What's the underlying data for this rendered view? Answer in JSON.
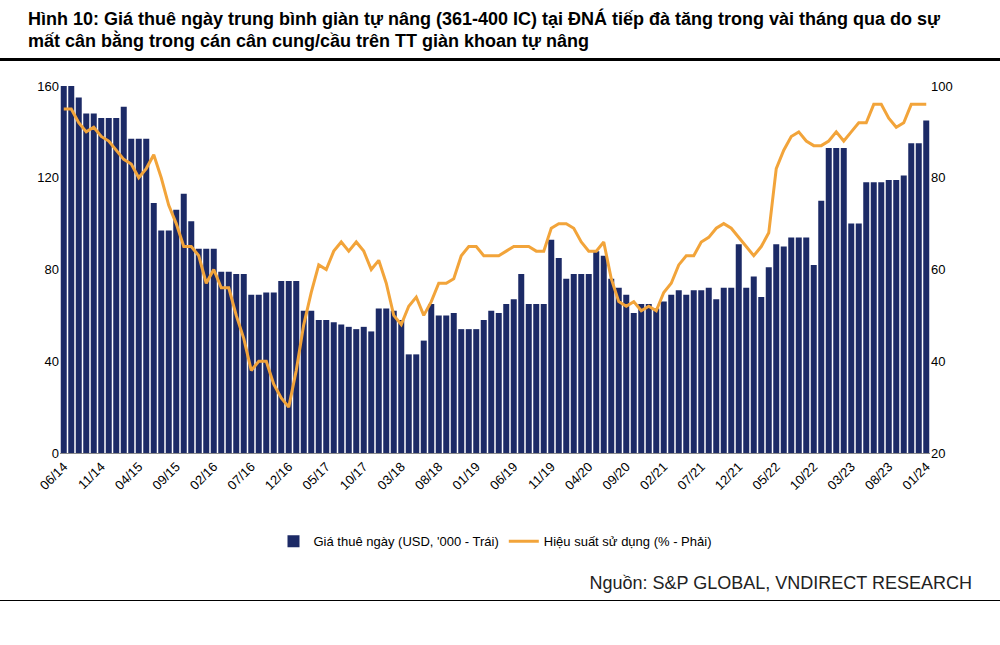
{
  "chart_data": {
    "type": "bar",
    "title": "Hình 10: Giá thuê ngày trung bình giàn tự nâng (361-400 IC) tại ĐNÁ tiếp đà tăng trong vài tháng qua do sự mất cân bằng trong cán cân cung/cầu trên TT giàn khoan tự nâng",
    "source": "Nguồn: S&P GLOBAL, VNDIRECT RESEARCH",
    "categories": [
      "06/14",
      null,
      null,
      null,
      null,
      "11/14",
      null,
      null,
      null,
      null,
      "04/15",
      null,
      null,
      null,
      null,
      "09/15",
      null,
      null,
      null,
      null,
      "02/16",
      null,
      null,
      null,
      null,
      "07/16",
      null,
      null,
      null,
      null,
      "12/16",
      null,
      null,
      null,
      null,
      "05/17",
      null,
      null,
      null,
      null,
      "10/17",
      null,
      null,
      null,
      null,
      "03/18",
      null,
      null,
      null,
      null,
      "08/18",
      null,
      null,
      null,
      null,
      "01/19",
      null,
      null,
      null,
      null,
      "06/19",
      null,
      null,
      null,
      null,
      "11/19",
      null,
      null,
      null,
      null,
      "04/20",
      null,
      null,
      null,
      null,
      "09/20",
      null,
      null,
      null,
      null,
      "02/21",
      null,
      null,
      null,
      null,
      "07/21",
      null,
      null,
      null,
      null,
      "12/21",
      null,
      null,
      null,
      null,
      "05/22",
      null,
      null,
      null,
      null,
      "10/22",
      null,
      null,
      null,
      null,
      "03/23",
      null,
      null,
      null,
      null,
      "08/23",
      null,
      null,
      null,
      null,
      "01/24"
    ],
    "series": [
      {
        "name": "Giá thuê ngày (USD, '000 - Trái)",
        "type": "bar",
        "color": "#1c2a66",
        "values": [
          160,
          160,
          155,
          148,
          148,
          146,
          146,
          146,
          151,
          137,
          137,
          137,
          109,
          97,
          97,
          106,
          113,
          101,
          89,
          89,
          89,
          79,
          79,
          78,
          78,
          69,
          69,
          70,
          70,
          75,
          75,
          75,
          62,
          62,
          58,
          58,
          57,
          56,
          55,
          54,
          55,
          53,
          63,
          63,
          62,
          58,
          43,
          43,
          49,
          65,
          60,
          60,
          61,
          54,
          54,
          54,
          58,
          62,
          61,
          65,
          67,
          78,
          65,
          65,
          65,
          93,
          85,
          76,
          78,
          78,
          78,
          88,
          86,
          76,
          72,
          69,
          61,
          65,
          65,
          63,
          66,
          69,
          71,
          69,
          71,
          71,
          72,
          67,
          72,
          72,
          91,
          72,
          77,
          68,
          81,
          91,
          90,
          94,
          94,
          94,
          82,
          110,
          133,
          133,
          133,
          100,
          100,
          118,
          118,
          118,
          119,
          119,
          121,
          135,
          135,
          145
        ]
      },
      {
        "name": "Hiệu suất sử dụng (% - Phải)",
        "type": "line",
        "color": "#f2a43a",
        "axis": "y2",
        "values": [
          95,
          95,
          92,
          90,
          91,
          89,
          88,
          86,
          84,
          83,
          80,
          82,
          85,
          80,
          74,
          70,
          65,
          65,
          63,
          57,
          60,
          56,
          56,
          50,
          45,
          38,
          40,
          40,
          35,
          32,
          30,
          38,
          48,
          55,
          61,
          60,
          64,
          66,
          64,
          66,
          64,
          60,
          62,
          57,
          50,
          48,
          52,
          54,
          50,
          53,
          57,
          57,
          58,
          63,
          65,
          65,
          63,
          63,
          63,
          64,
          65,
          65,
          65,
          64,
          64,
          69,
          70,
          70,
          69,
          66,
          64,
          64,
          66,
          58,
          53,
          52,
          53,
          51,
          52,
          51,
          55,
          57,
          61,
          63,
          63,
          66,
          67,
          69,
          70,
          69,
          67,
          65,
          63,
          65,
          68,
          82,
          86,
          89,
          90,
          88,
          87,
          87,
          88,
          90,
          88,
          90,
          92,
          92,
          96,
          96,
          93,
          91,
          92,
          96,
          96,
          96
        ]
      }
    ],
    "ylim": [
      0,
      160
    ],
    "yticks": [
      0,
      40,
      80,
      120,
      160
    ],
    "y2lim": [
      20,
      100
    ],
    "y2ticks": [
      20,
      40,
      60,
      80,
      100
    ],
    "grid": false,
    "legend": "bottom"
  }
}
